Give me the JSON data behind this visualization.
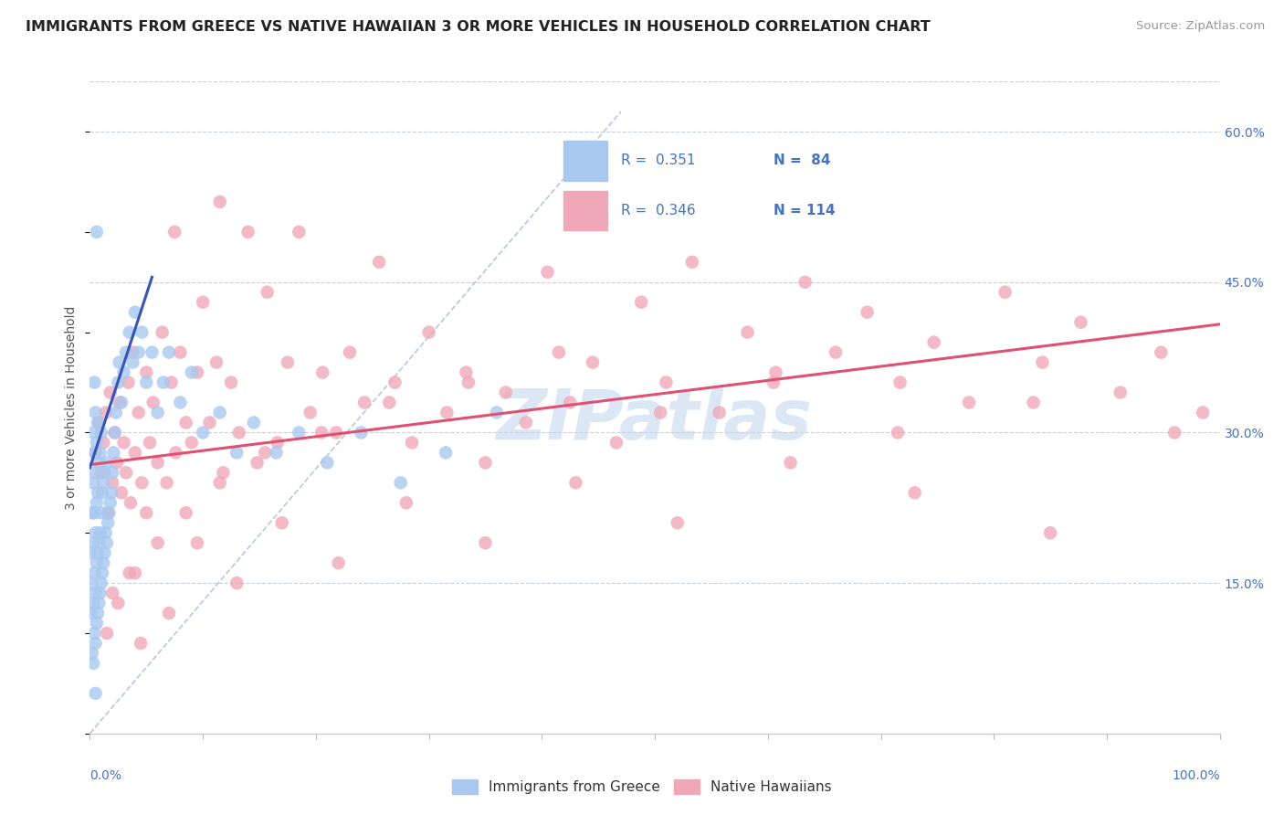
{
  "title": "IMMIGRANTS FROM GREECE VS NATIVE HAWAIIAN 3 OR MORE VEHICLES IN HOUSEHOLD CORRELATION CHART",
  "source": "Source: ZipAtlas.com",
  "ylabel": "3 or more Vehicles in Household",
  "ytick_vals": [
    0.0,
    0.15,
    0.3,
    0.45,
    0.6
  ],
  "ytick_labels": [
    "",
    "15.0%",
    "30.0%",
    "45.0%",
    "60.0%"
  ],
  "xlim": [
    0.0,
    1.0
  ],
  "ylim": [
    0.0,
    0.65
  ],
  "legend_r1": "R = 0.351",
  "legend_n1": "N = 84",
  "legend_r2": "R = 0.346",
  "legend_n2": "N = 114",
  "color_blue": "#a8c8f0",
  "color_pink": "#f0a8b8",
  "color_blue_line": "#3355bb",
  "color_pink_line": "#e05070",
  "color_dashed": "#9ab0cc",
  "watermark": "ZIPatlas",
  "series1_label": "Immigrants from Greece",
  "series2_label": "Native Hawaiians",
  "blue_line_x0": 0.0,
  "blue_line_y0": 0.265,
  "blue_line_x1": 0.055,
  "blue_line_y1": 0.455,
  "pink_line_x0": 0.0,
  "pink_line_y0": 0.268,
  "pink_line_x1": 1.0,
  "pink_line_y1": 0.408,
  "dash_line_x0": 0.0,
  "dash_line_y0": 0.0,
  "dash_line_x1": 0.47,
  "dash_line_y1": 0.62,
  "blue_scatter_x": [
    0.001,
    0.001,
    0.002,
    0.002,
    0.002,
    0.003,
    0.003,
    0.003,
    0.003,
    0.003,
    0.004,
    0.004,
    0.004,
    0.004,
    0.004,
    0.005,
    0.005,
    0.005,
    0.005,
    0.005,
    0.006,
    0.006,
    0.006,
    0.006,
    0.007,
    0.007,
    0.007,
    0.007,
    0.008,
    0.008,
    0.008,
    0.009,
    0.009,
    0.009,
    0.01,
    0.01,
    0.01,
    0.011,
    0.011,
    0.012,
    0.012,
    0.013,
    0.013,
    0.014,
    0.015,
    0.015,
    0.016,
    0.017,
    0.018,
    0.019,
    0.02,
    0.021,
    0.022,
    0.023,
    0.025,
    0.026,
    0.028,
    0.03,
    0.032,
    0.035,
    0.038,
    0.04,
    0.043,
    0.046,
    0.05,
    0.055,
    0.06,
    0.065,
    0.07,
    0.08,
    0.09,
    0.1,
    0.115,
    0.13,
    0.145,
    0.165,
    0.185,
    0.21,
    0.24,
    0.275,
    0.315,
    0.36,
    0.005,
    0.006
  ],
  "blue_scatter_y": [
    0.12,
    0.18,
    0.08,
    0.15,
    0.22,
    0.07,
    0.13,
    0.19,
    0.25,
    0.3,
    0.1,
    0.16,
    0.22,
    0.28,
    0.35,
    0.09,
    0.14,
    0.2,
    0.26,
    0.32,
    0.11,
    0.17,
    0.23,
    0.29,
    0.12,
    0.18,
    0.24,
    0.31,
    0.13,
    0.19,
    0.27,
    0.14,
    0.2,
    0.28,
    0.15,
    0.22,
    0.3,
    0.16,
    0.24,
    0.17,
    0.25,
    0.18,
    0.26,
    0.2,
    0.19,
    0.27,
    0.21,
    0.22,
    0.23,
    0.24,
    0.26,
    0.28,
    0.3,
    0.32,
    0.35,
    0.37,
    0.33,
    0.36,
    0.38,
    0.4,
    0.37,
    0.42,
    0.38,
    0.4,
    0.35,
    0.38,
    0.32,
    0.35,
    0.38,
    0.33,
    0.36,
    0.3,
    0.32,
    0.28,
    0.31,
    0.28,
    0.3,
    0.27,
    0.3,
    0.25,
    0.28,
    0.32,
    0.04,
    0.5
  ],
  "pink_scatter_x": [
    0.005,
    0.008,
    0.01,
    0.012,
    0.014,
    0.016,
    0.018,
    0.02,
    0.022,
    0.024,
    0.026,
    0.028,
    0.03,
    0.032,
    0.034,
    0.036,
    0.038,
    0.04,
    0.043,
    0.046,
    0.05,
    0.053,
    0.056,
    0.06,
    0.064,
    0.068,
    0.072,
    0.076,
    0.08,
    0.085,
    0.09,
    0.095,
    0.1,
    0.106,
    0.112,
    0.118,
    0.125,
    0.132,
    0.14,
    0.148,
    0.157,
    0.166,
    0.175,
    0.185,
    0.195,
    0.206,
    0.218,
    0.23,
    0.243,
    0.256,
    0.27,
    0.285,
    0.3,
    0.316,
    0.333,
    0.35,
    0.368,
    0.386,
    0.405,
    0.425,
    0.445,
    0.466,
    0.488,
    0.51,
    0.533,
    0.557,
    0.582,
    0.607,
    0.633,
    0.66,
    0.688,
    0.717,
    0.747,
    0.778,
    0.81,
    0.843,
    0.877,
    0.912,
    0.948,
    0.985,
    0.02,
    0.035,
    0.05,
    0.07,
    0.095,
    0.13,
    0.17,
    0.22,
    0.28,
    0.35,
    0.43,
    0.52,
    0.62,
    0.73,
    0.85,
    0.015,
    0.025,
    0.04,
    0.06,
    0.085,
    0.115,
    0.155,
    0.205,
    0.265,
    0.335,
    0.415,
    0.505,
    0.605,
    0.715,
    0.835,
    0.96,
    0.045,
    0.075,
    0.115
  ],
  "pink_scatter_y": [
    0.28,
    0.31,
    0.26,
    0.29,
    0.32,
    0.22,
    0.34,
    0.25,
    0.3,
    0.27,
    0.33,
    0.24,
    0.29,
    0.26,
    0.35,
    0.23,
    0.38,
    0.28,
    0.32,
    0.25,
    0.36,
    0.29,
    0.33,
    0.27,
    0.4,
    0.25,
    0.35,
    0.28,
    0.38,
    0.31,
    0.29,
    0.36,
    0.43,
    0.31,
    0.37,
    0.26,
    0.35,
    0.3,
    0.5,
    0.27,
    0.44,
    0.29,
    0.37,
    0.5,
    0.32,
    0.36,
    0.3,
    0.38,
    0.33,
    0.47,
    0.35,
    0.29,
    0.4,
    0.32,
    0.36,
    0.27,
    0.34,
    0.31,
    0.46,
    0.33,
    0.37,
    0.29,
    0.43,
    0.35,
    0.47,
    0.32,
    0.4,
    0.36,
    0.45,
    0.38,
    0.42,
    0.35,
    0.39,
    0.33,
    0.44,
    0.37,
    0.41,
    0.34,
    0.38,
    0.32,
    0.14,
    0.16,
    0.22,
    0.12,
    0.19,
    0.15,
    0.21,
    0.17,
    0.23,
    0.19,
    0.25,
    0.21,
    0.27,
    0.24,
    0.2,
    0.1,
    0.13,
    0.16,
    0.19,
    0.22,
    0.25,
    0.28,
    0.3,
    0.33,
    0.35,
    0.38,
    0.32,
    0.35,
    0.3,
    0.33,
    0.3,
    0.09,
    0.5,
    0.53
  ]
}
